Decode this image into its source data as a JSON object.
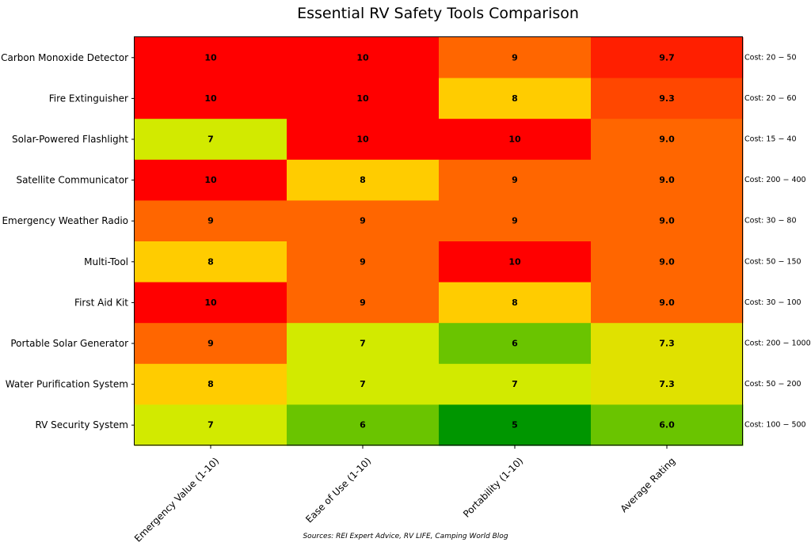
{
  "chart_data": {
    "type": "heatmap",
    "title": "Essential RV Safety Tools Comparison",
    "columns": [
      "Emergency Value (1-10)",
      "Ease of Use (1-10)",
      "Portability (1-10)",
      "Average Rating"
    ],
    "rows": [
      {
        "name": "Carbon Monoxide Detector",
        "values": [
          10,
          10,
          9,
          9.7
        ],
        "labels": [
          "10",
          "10",
          "9",
          "9.7"
        ],
        "cost": "Cost: 20 − 50"
      },
      {
        "name": "Fire Extinguisher",
        "values": [
          10,
          10,
          8,
          9.3
        ],
        "labels": [
          "10",
          "10",
          "8",
          "9.3"
        ],
        "cost": "Cost: 20 − 60"
      },
      {
        "name": "Solar-Powered Flashlight",
        "values": [
          7,
          10,
          10,
          9.0
        ],
        "labels": [
          "7",
          "10",
          "10",
          "9.0"
        ],
        "cost": "Cost: 15 − 40"
      },
      {
        "name": "Satellite Communicator",
        "values": [
          10,
          8,
          9,
          9.0
        ],
        "labels": [
          "10",
          "8",
          "9",
          "9.0"
        ],
        "cost": "Cost: 200 − 400"
      },
      {
        "name": "Emergency Weather Radio",
        "values": [
          9,
          9,
          9,
          9.0
        ],
        "labels": [
          "9",
          "9",
          "9",
          "9.0"
        ],
        "cost": "Cost: 30 − 80"
      },
      {
        "name": "Multi-Tool",
        "values": [
          8,
          9,
          10,
          9.0
        ],
        "labels": [
          "8",
          "9",
          "10",
          "9.0"
        ],
        "cost": "Cost: 50 − 150"
      },
      {
        "name": "First Aid Kit",
        "values": [
          10,
          9,
          8,
          9.0
        ],
        "labels": [
          "10",
          "9",
          "8",
          "9.0"
        ],
        "cost": "Cost: 30 − 100"
      },
      {
        "name": "Portable Solar Generator",
        "values": [
          9,
          7,
          6,
          7.3
        ],
        "labels": [
          "9",
          "7",
          "6",
          "7.3"
        ],
        "cost": "Cost: 200 − 1000"
      },
      {
        "name": "Water Purification System",
        "values": [
          8,
          7,
          7,
          7.3
        ],
        "labels": [
          "8",
          "7",
          "7",
          "7.3"
        ],
        "cost": "Cost: 50 − 200"
      },
      {
        "name": "RV Security System",
        "values": [
          7,
          6,
          5,
          6.0
        ],
        "labels": [
          "7",
          "6",
          "5",
          "6.0"
        ],
        "cost": "Cost: 100 − 500"
      }
    ],
    "colormap": {
      "name": "RdYlGn_r",
      "vmin": 5,
      "vmax": 10,
      "stops": [
        "#009600",
        "#6ac400",
        "#d2ea00",
        "#ffcc00",
        "#ff6600",
        "#ff0000"
      ]
    },
    "grid": false,
    "source": "Sources: REI Expert Advice, RV LIFE, Camping World Blog"
  }
}
